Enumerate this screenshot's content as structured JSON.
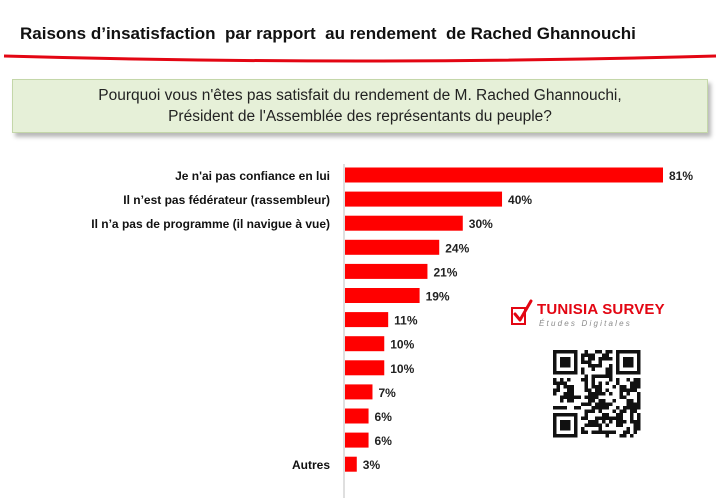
{
  "header": {
    "title": "Raisons d’insatisfaction  par rapport  au rendement  de Rached Ghannouchi"
  },
  "question": {
    "line1": "Pourquoi vous n'êtes pas satisfait du rendement de M. Rached Ghannouchi,",
    "line2": "Président de l'Assemblée des représentants du peuple?"
  },
  "brand": {
    "name": "TUNISIA SURVEY",
    "tagline": "Études Digitales",
    "logo_icon": "checkmark-ballot-icon",
    "qr_icon": "qr-code-icon"
  },
  "colors": {
    "accent": "#e30613",
    "bar": "#ff0000",
    "question_bg": "#e6f0d8"
  },
  "chart_data": {
    "type": "bar",
    "orientation": "horizontal",
    "categories": [
      "Je n'ai pas confiance en lui",
      "Il n’est pas fédérateur (rassembleur)",
      "Il n’a pas de programme (il navigue à vue)",
      "",
      "",
      "",
      "",
      "",
      "",
      "",
      "",
      "",
      "Autres"
    ],
    "values": [
      81,
      40,
      30,
      24,
      21,
      19,
      11,
      10,
      10,
      7,
      6,
      6,
      3
    ],
    "value_labels": [
      "81%",
      "40%",
      "30%",
      "24%",
      "21%",
      "19%",
      "11%",
      "10%",
      "10%",
      "7%",
      "6%",
      "6%",
      "3%"
    ],
    "unit": "%",
    "xlim": [
      0,
      81
    ],
    "grid": false,
    "legend": "none"
  }
}
